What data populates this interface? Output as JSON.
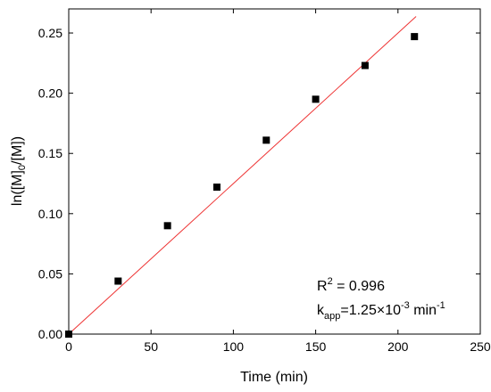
{
  "chart_data": {
    "type": "scatter",
    "xlabel": "Time (min)",
    "ylabel": {
      "prefix": "ln([M]",
      "sub": "0",
      "suffix": "/[M])"
    },
    "xlim": [
      0,
      250
    ],
    "ylim": [
      0,
      0.27
    ],
    "x_ticks": [
      0,
      50,
      100,
      150,
      200,
      250
    ],
    "x_tick_labels": [
      "0",
      "50",
      "100",
      "150",
      "200",
      "250"
    ],
    "y_ticks": [
      0,
      0.05,
      0.1,
      0.15,
      0.2,
      0.25
    ],
    "y_tick_labels": [
      "0.00",
      "0.05",
      "0.10",
      "0.15",
      "0.20",
      "0.25"
    ],
    "grid": false,
    "series": [
      {
        "marker": "square",
        "color": "#000000",
        "x": [
          0,
          30,
          60,
          90,
          120,
          150,
          180,
          210
        ],
        "y": [
          0.0,
          0.044,
          0.09,
          0.122,
          0.161,
          0.195,
          0.223,
          0.247
        ]
      }
    ],
    "fit_line": {
      "color": "#ee3333",
      "slope": 0.00125,
      "intercept": 0,
      "x_range": [
        0,
        211
      ]
    },
    "annotations": {
      "r2": {
        "main": "R",
        "sup": "2",
        "rest": " = 0.996"
      },
      "kapp": {
        "main": "k",
        "sub": "app",
        "mid": "=1.25×10",
        "sup": "-3",
        "rest": " min",
        "sup2": "-1"
      }
    }
  }
}
